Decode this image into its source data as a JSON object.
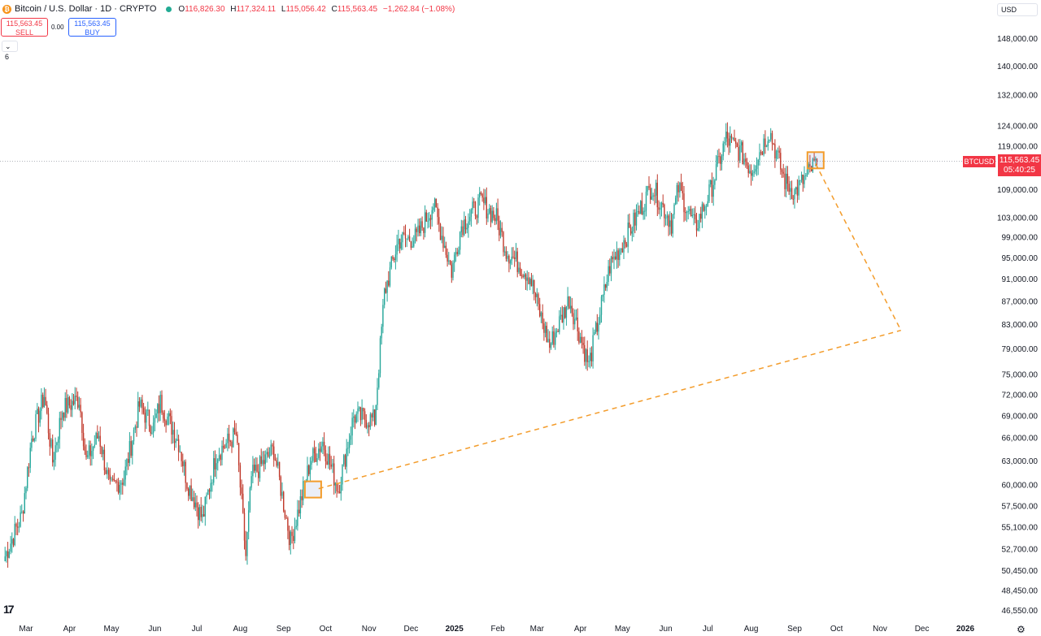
{
  "header": {
    "logo_glyph": "₿",
    "symbol_title": "Bitcoin / U.S. Dollar · 1D · CRYPTO",
    "open_label": "O",
    "open": "116,826.30",
    "high_label": "H",
    "high": "117,324.11",
    "low_label": "L",
    "low": "115,056.42",
    "close_label": "C",
    "close": "115,563.45",
    "change": "−1,262.84 (−1.08%)",
    "status_color": "#22ab94"
  },
  "trade": {
    "sell_price": "115,563.45",
    "sell_label": "SELL",
    "spread": "0.00",
    "buy_price": "115,563.45",
    "buy_label": "BUY"
  },
  "indicators_toggle": "⌄ 6",
  "currency_button": "USD",
  "last_price": {
    "symbol": "BTCUSD",
    "price": "115,563.45",
    "countdown": "05:40:25"
  },
  "tv_logo": "17",
  "settings_icon": "⚙",
  "colors": {
    "up": "#26a69a",
    "down": "#c0392b",
    "drawing": "#f39c2b",
    "last": "#f23645"
  },
  "chart_data": {
    "type": "candlestick",
    "y_ticks": [
      "148,000.00",
      "140,000.00",
      "132,000.00",
      "124,000.00",
      "119,000.00",
      "109,000.00",
      "103,000.00",
      "99,000.00",
      "95,000.00",
      "91,000.00",
      "87,000.00",
      "83,000.00",
      "79,000.00",
      "75,000.00",
      "72,000.00",
      "69,000.00",
      "66,000.00",
      "63,000.00",
      "60,000.00",
      "57,500.00",
      "55,100.00",
      "52,700.00",
      "50,450.00",
      "48,450.00",
      "46,550.00"
    ],
    "x_ticks": [
      "Mar",
      "Apr",
      "May",
      "Jun",
      "Jul",
      "Aug",
      "Sep",
      "Oct",
      "Nov",
      "Dec",
      "2025",
      "Feb",
      "Mar",
      "Apr",
      "May",
      "Jun",
      "Jul",
      "Aug",
      "Sep",
      "Oct",
      "Nov",
      "Dec",
      "2026"
    ],
    "x_tick_bold": [
      false,
      false,
      false,
      false,
      false,
      false,
      false,
      false,
      false,
      false,
      true,
      false,
      false,
      false,
      false,
      false,
      false,
      false,
      false,
      false,
      false,
      false,
      true
    ],
    "price_path": [
      [
        "2024-02-15",
        52000
      ],
      [
        "2024-02-27",
        56500
      ],
      [
        "2024-03-05",
        66000
      ],
      [
        "2024-03-14",
        72000
      ],
      [
        "2024-03-20",
        63000
      ],
      [
        "2024-03-27",
        70000
      ],
      [
        "2024-04-08",
        71500
      ],
      [
        "2024-04-13",
        63000
      ],
      [
        "2024-04-22",
        66500
      ],
      [
        "2024-04-30",
        59500
      ],
      [
        "2024-05-10",
        61000
      ],
      [
        "2024-05-21",
        70500
      ],
      [
        "2024-05-31",
        67500
      ],
      [
        "2024-06-05",
        71000
      ],
      [
        "2024-06-18",
        65500
      ],
      [
        "2024-06-24",
        60500
      ],
      [
        "2024-07-05",
        56000
      ],
      [
        "2024-07-15",
        64000
      ],
      [
        "2024-07-29",
        66500
      ],
      [
        "2024-08-05",
        52000
      ],
      [
        "2024-08-09",
        61000
      ],
      [
        "2024-08-25",
        64500
      ],
      [
        "2024-09-06",
        53500
      ],
      [
        "2024-09-20",
        63000
      ],
      [
        "2024-09-29",
        65500
      ],
      [
        "2024-10-10",
        59500
      ],
      [
        "2024-10-21",
        69000
      ],
      [
        "2024-11-05",
        68500
      ],
      [
        "2024-11-12",
        88500
      ],
      [
        "2024-11-22",
        98500
      ],
      [
        "2024-12-05",
        99000
      ],
      [
        "2024-12-17",
        106000
      ],
      [
        "2024-12-30",
        92500
      ],
      [
        "2025-01-06",
        101500
      ],
      [
        "2025-01-20",
        106500
      ],
      [
        "2025-01-31",
        103000
      ],
      [
        "2025-02-07",
        96500
      ],
      [
        "2025-02-24",
        91500
      ],
      [
        "2025-03-03",
        85000
      ],
      [
        "2025-03-10",
        79500
      ],
      [
        "2025-03-24",
        87500
      ],
      [
        "2025-04-07",
        76500
      ],
      [
        "2025-04-22",
        93500
      ],
      [
        "2025-05-08",
        101500
      ],
      [
        "2025-05-22",
        110000
      ],
      [
        "2025-06-05",
        102000
      ],
      [
        "2025-06-10",
        109500
      ],
      [
        "2025-06-22",
        101000
      ],
      [
        "2025-07-03",
        109000
      ],
      [
        "2025-07-14",
        121000
      ],
      [
        "2025-07-25",
        117500
      ],
      [
        "2025-08-01",
        113500
      ],
      [
        "2025-08-14",
        123000
      ],
      [
        "2025-08-25",
        111000
      ],
      [
        "2025-09-01",
        108500
      ],
      [
        "2025-09-08",
        111500
      ],
      [
        "2025-09-17",
        115563.45
      ]
    ],
    "last_price": 115563.45,
    "annotations": [
      {
        "type": "box",
        "date": "2024-09-22",
        "value": 59500
      },
      {
        "type": "box",
        "date": "2025-09-16",
        "value": 115800
      },
      {
        "type": "dashed_line",
        "from": [
          "2024-09-26",
          59600
        ],
        "to": [
          "2025-11-16",
          82100
        ]
      },
      {
        "type": "dashed_line",
        "from": [
          "2025-09-16",
          115000
        ],
        "to": [
          "2025-11-16",
          82100
        ]
      }
    ]
  }
}
